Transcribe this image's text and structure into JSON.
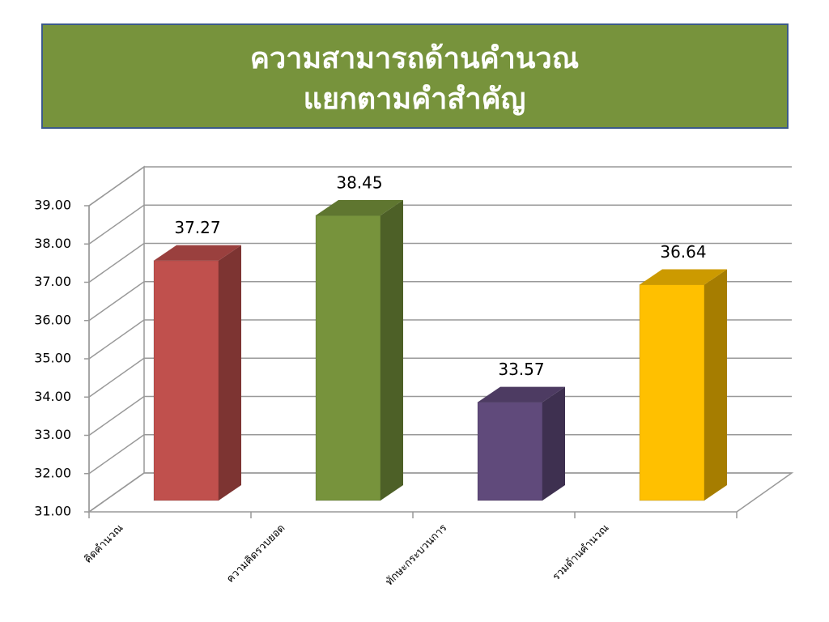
{
  "chart_data": {
    "type": "bar3d",
    "title": [
      "ความสามารถด้านคำนวณ",
      "แยกตามคำสำคัญ"
    ],
    "categories": [
      "คิดคำนวณ",
      "ความคิดรวบยอด",
      "ทักษะกระบวนการ",
      "รวมด้านคำนวณ"
    ],
    "values": [
      37.27,
      38.45,
      33.57,
      36.64
    ],
    "colors": [
      "#c0504d",
      "#77933c",
      "#604a7b",
      "#ffc000"
    ],
    "ylim": [
      31,
      39
    ],
    "yticks": [
      {
        "value": 31,
        "label": "31.00"
      },
      {
        "value": 32,
        "label": "32.00"
      },
      {
        "value": 33,
        "label": "33.00"
      },
      {
        "value": 34,
        "label": "34.00"
      },
      {
        "value": 35,
        "label": "35.00"
      },
      {
        "value": 36,
        "label": "36.00"
      },
      {
        "value": 37,
        "label": "37.00"
      },
      {
        "value": 38,
        "label": "38.00"
      },
      {
        "value": 39,
        "label": "39.00"
      }
    ],
    "grid": true
  }
}
